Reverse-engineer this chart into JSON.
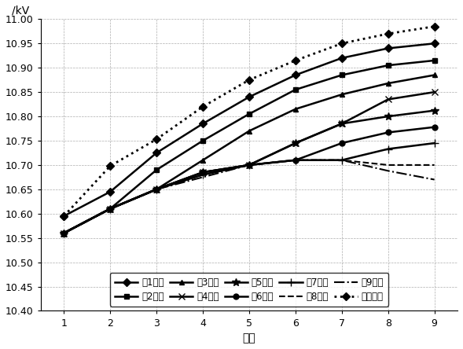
{
  "x": [
    1,
    2,
    3,
    4,
    5,
    6,
    7,
    8,
    9
  ],
  "series_order": [
    "第1节点",
    "第2节点",
    "第3节点",
    "第4节点",
    "第5节点",
    "第6节点",
    "第7节点",
    "第8节点",
    "第9节点",
    "初始情况"
  ],
  "series": {
    "第1节点": [
      10.595,
      10.645,
      10.725,
      10.785,
      10.84,
      10.885,
      10.92,
      10.94,
      10.95
    ],
    "第2节点": [
      10.56,
      10.61,
      10.69,
      10.75,
      10.805,
      10.855,
      10.885,
      10.905,
      10.915
    ],
    "第3节点": [
      10.56,
      10.61,
      10.65,
      10.71,
      10.77,
      10.815,
      10.845,
      10.868,
      10.885
    ],
    "第4节点": [
      10.56,
      10.61,
      10.65,
      10.685,
      10.7,
      10.745,
      10.785,
      10.835,
      10.85
    ],
    "第5节点": [
      10.56,
      10.61,
      10.65,
      10.685,
      10.7,
      10.745,
      10.785,
      10.8,
      10.812
    ],
    "第6节点": [
      10.56,
      10.61,
      10.65,
      10.685,
      10.7,
      10.71,
      10.745,
      10.767,
      10.778
    ],
    "第7节点": [
      10.56,
      10.61,
      10.65,
      10.68,
      10.7,
      10.71,
      10.71,
      10.733,
      10.745
    ],
    "第8节点": [
      10.56,
      10.61,
      10.65,
      10.68,
      10.7,
      10.71,
      10.71,
      10.7,
      10.7
    ],
    "第9节点": [
      10.56,
      10.61,
      10.65,
      10.675,
      10.7,
      10.71,
      10.71,
      10.688,
      10.67
    ],
    "初始情况": [
      10.595,
      10.698,
      10.753,
      10.82,
      10.875,
      10.915,
      10.95,
      10.97,
      10.985
    ]
  },
  "line_styles": {
    "第1节点": {
      "linestyle": "-",
      "marker": "D",
      "markersize": 5,
      "linewidth": 1.8
    },
    "第2节点": {
      "linestyle": "-",
      "marker": "s",
      "markersize": 5,
      "linewidth": 1.8
    },
    "第3节点": {
      "linestyle": "-",
      "marker": "^",
      "markersize": 5,
      "linewidth": 1.8
    },
    "第4节点": {
      "linestyle": "-",
      "marker": "x",
      "markersize": 6,
      "linewidth": 1.8
    },
    "第5节点": {
      "linestyle": "-",
      "marker": "*",
      "markersize": 7,
      "linewidth": 1.8
    },
    "第6节点": {
      "linestyle": "-",
      "marker": "o",
      "markersize": 5,
      "linewidth": 1.8
    },
    "第7节点": {
      "linestyle": "-",
      "marker": "+",
      "markersize": 7,
      "linewidth": 1.8
    },
    "第8节点": {
      "linestyle": "--",
      "marker": null,
      "markersize": 5,
      "linewidth": 1.5
    },
    "第9节点": {
      "linestyle": "-.",
      "marker": null,
      "markersize": 5,
      "linewidth": 1.5
    },
    "初始情况": {
      "linestyle": ":",
      "marker": "D",
      "markersize": 5,
      "linewidth": 2.0
    }
  },
  "ylabel": "/kV",
  "xlabel": "节点",
  "ylim": [
    10.4,
    11.0
  ],
  "yticks": [
    10.4,
    10.45,
    10.5,
    10.55,
    10.6,
    10.65,
    10.7,
    10.75,
    10.8,
    10.85,
    10.9,
    10.95,
    11.0
  ],
  "xticks": [
    1,
    2,
    3,
    4,
    5,
    6,
    7,
    8,
    9
  ],
  "color": "#000000",
  "background_color": "#ffffff",
  "legend_fontsize": 8.5,
  "axis_fontsize": 10,
  "tick_fontsize": 9
}
